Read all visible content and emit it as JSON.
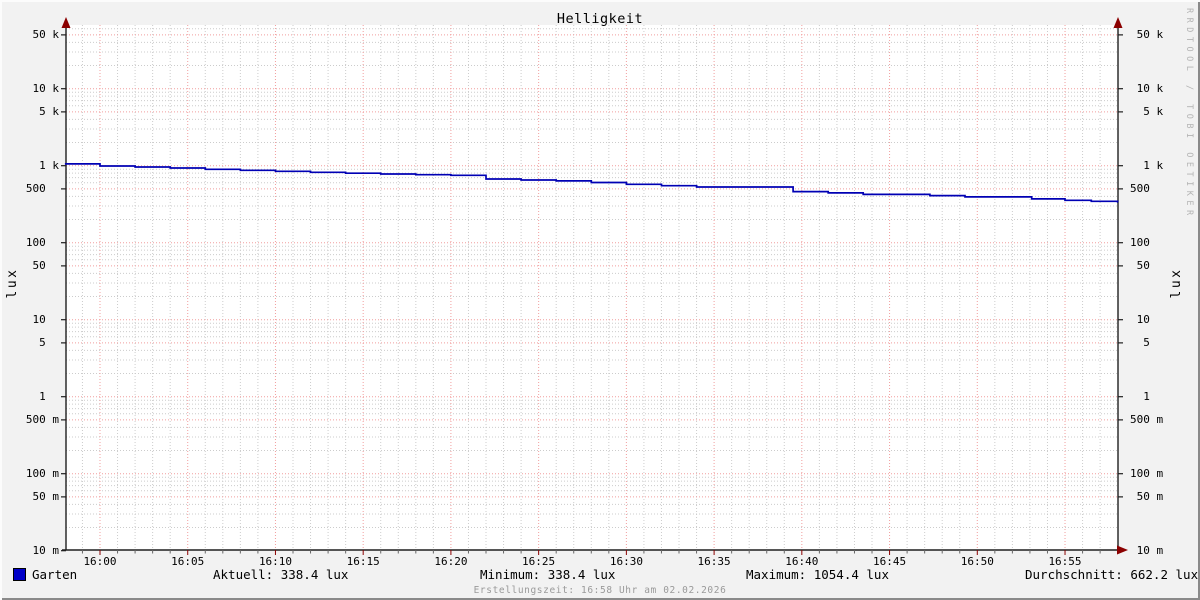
{
  "watermark": {
    "text": "RRDTOOL / TOBI OETIKER"
  },
  "footer": {
    "text": "Erstellungszeit: 16:58 Uhr am 02.02.2026"
  },
  "legend_row": {
    "series_label": "Garten",
    "aktuell": "Aktuell: 338.4 lux",
    "minimum": "Minimum: 338.4 lux",
    "maximum": "Maximum: 1054.4 lux",
    "durchschnitt": "Durchschnitt: 662.2 lux"
  },
  "colors": {
    "line": "#0000b4",
    "legend_swatch": "#0000c8",
    "major_grid": "#f19e9e",
    "minor_grid": "#cccccc",
    "axis": "#1f1f1f",
    "arrow": "#8b0000",
    "canvas": "#ffffff"
  },
  "chart_data": {
    "type": "line",
    "title": "Helligkeit",
    "ylabel": "lux",
    "ylabel_right": "lux",
    "y_scale": "log10",
    "ylim": [
      0.01,
      66000
    ],
    "x_window": [
      "15:58",
      "16:58"
    ],
    "grid": {
      "minor_x_step_min": 1,
      "major_x_step_min": 5,
      "style": "dotted"
    },
    "legend_position": "bottom",
    "y_tick_labels": [
      {
        "v": 50000,
        "label": " 50 k"
      },
      {
        "v": 10000,
        "label": " 10 k"
      },
      {
        "v": 5000,
        "label": "  5 k"
      },
      {
        "v": 1000,
        "label": "  1 k"
      },
      {
        "v": 500,
        "label": "500  "
      },
      {
        "v": 100,
        "label": "100  "
      },
      {
        "v": 50,
        "label": " 50  "
      },
      {
        "v": 10,
        "label": " 10  "
      },
      {
        "v": 5,
        "label": "  5  "
      },
      {
        "v": 1,
        "label": "  1  "
      },
      {
        "v": 0.5,
        "label": "500 m"
      },
      {
        "v": 0.1,
        "label": "100 m"
      },
      {
        "v": 0.05,
        "label": " 50 m"
      },
      {
        "v": 0.01,
        "label": " 10 m"
      }
    ],
    "x_tick_labels": [
      {
        "t": 2,
        "label": "16:00"
      },
      {
        "t": 7,
        "label": "16:05"
      },
      {
        "t": 12,
        "label": "16:10"
      },
      {
        "t": 17,
        "label": "16:15"
      },
      {
        "t": 22,
        "label": "16:20"
      },
      {
        "t": 27,
        "label": "16:25"
      },
      {
        "t": 32,
        "label": "16:30"
      },
      {
        "t": 37,
        "label": "16:35"
      },
      {
        "t": 42,
        "label": "16:40"
      },
      {
        "t": 47,
        "label": "16:45"
      },
      {
        "t": 52,
        "label": "16:50"
      },
      {
        "t": 57,
        "label": "16:55"
      }
    ],
    "series": [
      {
        "name": "Garten",
        "unit": "lux",
        "color": "#0000b4",
        "draw_style": "step-after",
        "points_min_after_1558_lux": [
          [
            0,
            1054.4
          ],
          [
            2,
            991
          ],
          [
            4,
            962
          ],
          [
            6,
            933
          ],
          [
            8,
            898
          ],
          [
            10,
            871
          ],
          [
            12,
            846
          ],
          [
            14,
            821
          ],
          [
            16,
            800
          ],
          [
            18,
            780
          ],
          [
            20,
            764
          ],
          [
            22,
            750
          ],
          [
            24,
            672
          ],
          [
            26,
            653
          ],
          [
            28,
            635
          ],
          [
            30,
            605
          ],
          [
            32,
            574
          ],
          [
            34,
            550
          ],
          [
            36,
            529
          ],
          [
            41.5,
            461
          ],
          [
            43.5,
            443
          ],
          [
            45.5,
            424
          ],
          [
            49.3,
            409
          ],
          [
            51.3,
            393
          ],
          [
            55.1,
            370
          ],
          [
            57,
            355
          ],
          [
            58.5,
            345
          ],
          [
            60,
            338.4
          ]
        ]
      }
    ],
    "stats": {
      "aktuell_lux": 338.4,
      "minimum_lux": 338.4,
      "maximum_lux": 1054.4,
      "durchschnitt_lux": 662.2
    }
  }
}
